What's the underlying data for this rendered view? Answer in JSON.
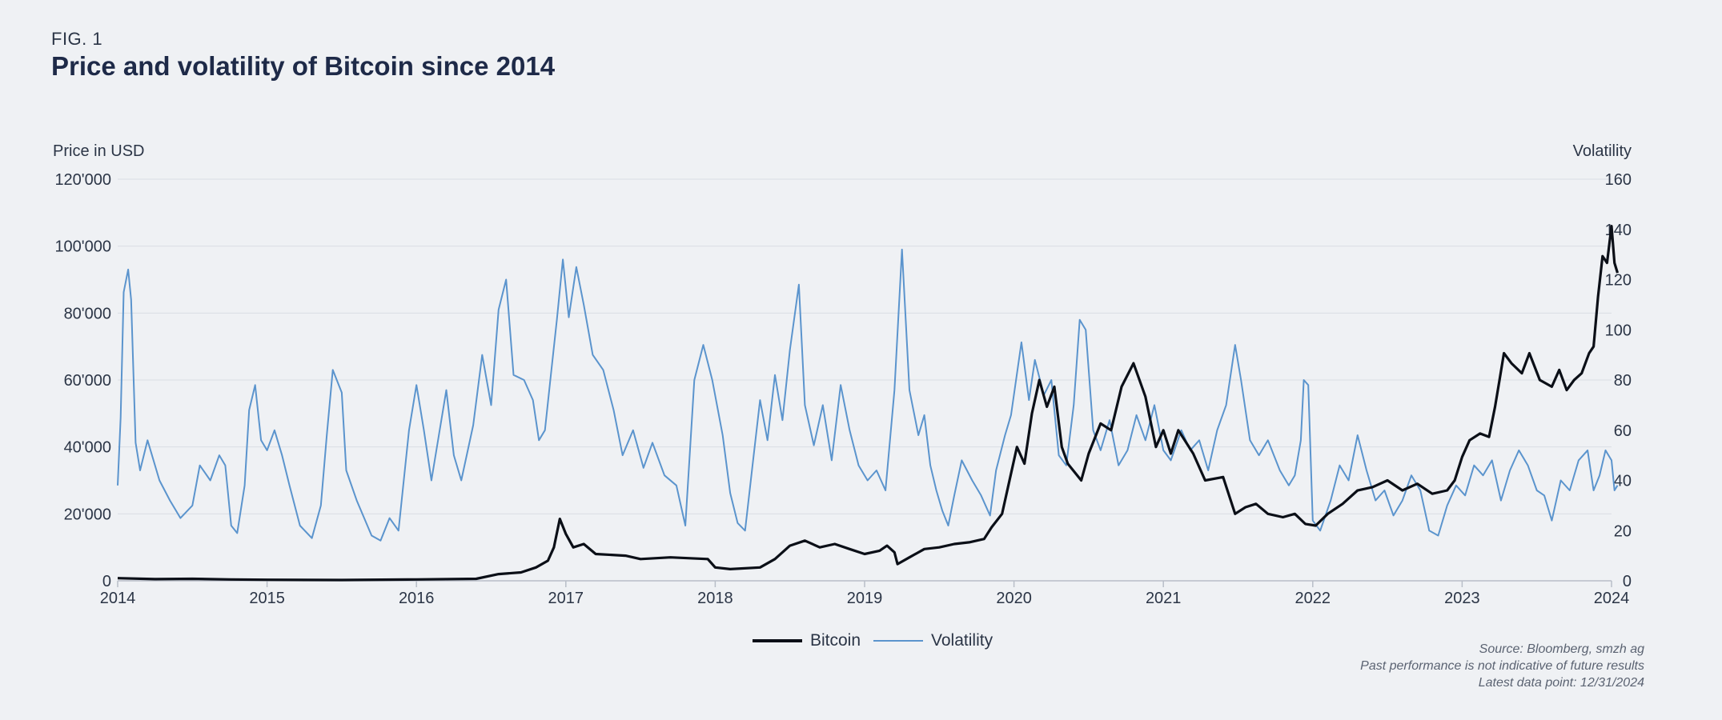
{
  "figure": {
    "label": "FIG. 1",
    "title": "Price and volatility of Bitcoin since 2014"
  },
  "chart_data": {
    "type": "line",
    "left_axis_title": "Price in USD",
    "right_axis_title": "Volatility",
    "left_ticks": [
      "0",
      "20'000",
      "40'000",
      "60'000",
      "80'000",
      "100'000",
      "120'000"
    ],
    "left_ylim": [
      0,
      120000
    ],
    "right_ticks": [
      "0",
      "20",
      "40",
      "60",
      "80",
      "100",
      "120",
      "140",
      "160"
    ],
    "right_ylim": [
      0,
      160
    ],
    "x_ticks": [
      "2014",
      "2015",
      "2016",
      "2017",
      "2018",
      "2019",
      "2020",
      "2021",
      "2022",
      "2023",
      "2024"
    ],
    "xlim": [
      2014,
      2024
    ],
    "grid": true,
    "colors": {
      "bitcoin": "#0b0f17",
      "volatility": "#5b94cd",
      "grid": "#d9dde4"
    },
    "series": [
      {
        "name": "Bitcoin",
        "axis": "left",
        "points": [
          [
            2014.0,
            800
          ],
          [
            2014.25,
            500
          ],
          [
            2014.5,
            600
          ],
          [
            2014.75,
            400
          ],
          [
            2015.0,
            300
          ],
          [
            2015.5,
            250
          ],
          [
            2016.0,
            400
          ],
          [
            2016.4,
            600
          ],
          [
            2016.55,
            2000
          ],
          [
            2016.7,
            2500
          ],
          [
            2016.8,
            4000
          ],
          [
            2016.88,
            6000
          ],
          [
            2016.92,
            10000
          ],
          [
            2016.96,
            18500
          ],
          [
            2017.0,
            14000
          ],
          [
            2017.05,
            10000
          ],
          [
            2017.12,
            11000
          ],
          [
            2017.2,
            8000
          ],
          [
            2017.4,
            7500
          ],
          [
            2017.5,
            6500
          ],
          [
            2017.7,
            7000
          ],
          [
            2017.95,
            6500
          ],
          [
            2018.0,
            4000
          ],
          [
            2018.1,
            3500
          ],
          [
            2018.3,
            4000
          ],
          [
            2018.4,
            6500
          ],
          [
            2018.5,
            10500
          ],
          [
            2018.6,
            12000
          ],
          [
            2018.7,
            10000
          ],
          [
            2018.8,
            11000
          ],
          [
            2018.9,
            9500
          ],
          [
            2019.0,
            8000
          ],
          [
            2019.1,
            9000
          ],
          [
            2019.15,
            10500
          ],
          [
            2019.2,
            8500
          ],
          [
            2019.22,
            5000
          ],
          [
            2019.3,
            7000
          ],
          [
            2019.4,
            9500
          ],
          [
            2019.5,
            10000
          ],
          [
            2019.6,
            11000
          ],
          [
            2019.7,
            11500
          ],
          [
            2019.8,
            12500
          ],
          [
            2019.85,
            16000
          ],
          [
            2019.92,
            20000
          ],
          [
            2019.97,
            30000
          ],
          [
            2020.02,
            40000
          ],
          [
            2020.07,
            35000
          ],
          [
            2020.12,
            50000
          ],
          [
            2020.17,
            60000
          ],
          [
            2020.22,
            52000
          ],
          [
            2020.27,
            58000
          ],
          [
            2020.32,
            40000
          ],
          [
            2020.36,
            35000
          ],
          [
            2020.45,
            30000
          ],
          [
            2020.5,
            38000
          ],
          [
            2020.58,
            47000
          ],
          [
            2020.65,
            45000
          ],
          [
            2020.72,
            58000
          ],
          [
            2020.8,
            65000
          ],
          [
            2020.88,
            55000
          ],
          [
            2020.95,
            40000
          ],
          [
            2021.0,
            45000
          ],
          [
            2021.05,
            38000
          ],
          [
            2021.1,
            45000
          ],
          [
            2021.2,
            38000
          ],
          [
            2021.28,
            30000
          ],
          [
            2021.4,
            31000
          ],
          [
            2021.48,
            20000
          ],
          [
            2021.55,
            22000
          ],
          [
            2021.62,
            23000
          ],
          [
            2021.7,
            20000
          ],
          [
            2021.8,
            19000
          ],
          [
            2021.88,
            20000
          ],
          [
            2021.95,
            17000
          ],
          [
            2022.02,
            16500
          ],
          [
            2022.1,
            20000
          ],
          [
            2022.2,
            23000
          ],
          [
            2022.3,
            27000
          ],
          [
            2022.4,
            28000
          ],
          [
            2022.5,
            30000
          ],
          [
            2022.6,
            27000
          ],
          [
            2022.7,
            29000
          ],
          [
            2022.8,
            26000
          ],
          [
            2022.9,
            27000
          ],
          [
            2022.95,
            30000
          ],
          [
            2023.0,
            37000
          ],
          [
            2023.05,
            42000
          ],
          [
            2023.12,
            44000
          ],
          [
            2023.18,
            43000
          ],
          [
            2023.22,
            52000
          ],
          [
            2023.25,
            60000
          ],
          [
            2023.28,
            68000
          ],
          [
            2023.33,
            65000
          ],
          [
            2023.4,
            62000
          ],
          [
            2023.45,
            68000
          ],
          [
            2023.52,
            60000
          ],
          [
            2023.6,
            58000
          ],
          [
            2023.65,
            63000
          ],
          [
            2023.7,
            57000
          ],
          [
            2023.75,
            60000
          ],
          [
            2023.8,
            62000
          ],
          [
            2023.85,
            68000
          ],
          [
            2023.88,
            70000
          ],
          [
            2023.91,
            85000
          ],
          [
            2023.94,
            97000
          ],
          [
            2023.97,
            95000
          ],
          [
            2024.0,
            106000
          ],
          [
            2024.02,
            95000
          ],
          [
            2024.04,
            92000
          ]
        ]
      },
      {
        "name": "Volatility",
        "axis": "right",
        "points": [
          [
            2014.0,
            38
          ],
          [
            2014.02,
            65
          ],
          [
            2014.04,
            115
          ],
          [
            2014.07,
            124
          ],
          [
            2014.09,
            112
          ],
          [
            2014.12,
            55
          ],
          [
            2014.15,
            44
          ],
          [
            2014.2,
            56
          ],
          [
            2014.28,
            40
          ],
          [
            2014.35,
            32
          ],
          [
            2014.42,
            25
          ],
          [
            2014.5,
            30
          ],
          [
            2014.55,
            46
          ],
          [
            2014.62,
            40
          ],
          [
            2014.68,
            50
          ],
          [
            2014.72,
            46
          ],
          [
            2014.76,
            22
          ],
          [
            2014.8,
            19
          ],
          [
            2014.85,
            38
          ],
          [
            2014.88,
            68
          ],
          [
            2014.92,
            78
          ],
          [
            2014.96,
            56
          ],
          [
            2015.0,
            52
          ],
          [
            2015.05,
            60
          ],
          [
            2015.1,
            50
          ],
          [
            2015.15,
            38
          ],
          [
            2015.22,
            22
          ],
          [
            2015.3,
            17
          ],
          [
            2015.36,
            30
          ],
          [
            2015.4,
            58
          ],
          [
            2015.44,
            84
          ],
          [
            2015.5,
            75
          ],
          [
            2015.53,
            44
          ],
          [
            2015.6,
            32
          ],
          [
            2015.7,
            18
          ],
          [
            2015.76,
            16
          ],
          [
            2015.82,
            25
          ],
          [
            2015.88,
            20
          ],
          [
            2015.95,
            60
          ],
          [
            2016.0,
            78
          ],
          [
            2016.05,
            60
          ],
          [
            2016.1,
            40
          ],
          [
            2016.15,
            58
          ],
          [
            2016.2,
            76
          ],
          [
            2016.25,
            50
          ],
          [
            2016.3,
            40
          ],
          [
            2016.38,
            62
          ],
          [
            2016.44,
            90
          ],
          [
            2016.5,
            70
          ],
          [
            2016.55,
            108
          ],
          [
            2016.6,
            120
          ],
          [
            2016.65,
            82
          ],
          [
            2016.72,
            80
          ],
          [
            2016.78,
            72
          ],
          [
            2016.82,
            56
          ],
          [
            2016.86,
            60
          ],
          [
            2016.9,
            82
          ],
          [
            2016.94,
            104
          ],
          [
            2016.98,
            128
          ],
          [
            2017.02,
            105
          ],
          [
            2017.07,
            125
          ],
          [
            2017.12,
            110
          ],
          [
            2017.18,
            90
          ],
          [
            2017.25,
            84
          ],
          [
            2017.32,
            68
          ],
          [
            2017.38,
            50
          ],
          [
            2017.45,
            60
          ],
          [
            2017.52,
            45
          ],
          [
            2017.58,
            55
          ],
          [
            2017.66,
            42
          ],
          [
            2017.74,
            38
          ],
          [
            2017.8,
            22
          ],
          [
            2017.86,
            80
          ],
          [
            2017.92,
            94
          ],
          [
            2017.98,
            80
          ],
          [
            2018.05,
            58
          ],
          [
            2018.1,
            35
          ],
          [
            2018.15,
            23
          ],
          [
            2018.2,
            20
          ],
          [
            2018.25,
            46
          ],
          [
            2018.3,
            72
          ],
          [
            2018.35,
            56
          ],
          [
            2018.4,
            82
          ],
          [
            2018.45,
            64
          ],
          [
            2018.5,
            92
          ],
          [
            2018.56,
            118
          ],
          [
            2018.6,
            70
          ],
          [
            2018.66,
            54
          ],
          [
            2018.72,
            70
          ],
          [
            2018.78,
            48
          ],
          [
            2018.84,
            78
          ],
          [
            2018.9,
            60
          ],
          [
            2018.96,
            46
          ],
          [
            2019.02,
            40
          ],
          [
            2019.08,
            44
          ],
          [
            2019.14,
            36
          ],
          [
            2019.2,
            76
          ],
          [
            2019.25,
            132
          ],
          [
            2019.3,
            76
          ],
          [
            2019.36,
            58
          ],
          [
            2019.4,
            66
          ],
          [
            2019.44,
            46
          ],
          [
            2019.48,
            36
          ],
          [
            2019.52,
            28
          ],
          [
            2019.56,
            22
          ],
          [
            2019.6,
            34
          ],
          [
            2019.65,
            48
          ],
          [
            2019.72,
            40
          ],
          [
            2019.78,
            34
          ],
          [
            2019.84,
            26
          ],
          [
            2019.88,
            44
          ],
          [
            2019.94,
            58
          ],
          [
            2019.98,
            66
          ],
          [
            2020.05,
            95
          ],
          [
            2020.1,
            72
          ],
          [
            2020.14,
            88
          ],
          [
            2020.2,
            74
          ],
          [
            2020.25,
            80
          ],
          [
            2020.3,
            50
          ],
          [
            2020.35,
            46
          ],
          [
            2020.4,
            70
          ],
          [
            2020.44,
            104
          ],
          [
            2020.48,
            100
          ],
          [
            2020.53,
            60
          ],
          [
            2020.58,
            52
          ],
          [
            2020.64,
            64
          ],
          [
            2020.7,
            46
          ],
          [
            2020.76,
            52
          ],
          [
            2020.82,
            66
          ],
          [
            2020.88,
            56
          ],
          [
            2020.94,
            70
          ],
          [
            2021.0,
            52
          ],
          [
            2021.05,
            48
          ],
          [
            2021.12,
            60
          ],
          [
            2021.18,
            52
          ],
          [
            2021.24,
            56
          ],
          [
            2021.3,
            44
          ],
          [
            2021.36,
            60
          ],
          [
            2021.42,
            70
          ],
          [
            2021.48,
            94
          ],
          [
            2021.52,
            80
          ],
          [
            2021.58,
            56
          ],
          [
            2021.64,
            50
          ],
          [
            2021.7,
            56
          ],
          [
            2021.78,
            44
          ],
          [
            2021.84,
            38
          ],
          [
            2021.88,
            42
          ],
          [
            2021.92,
            56
          ],
          [
            2021.94,
            80
          ],
          [
            2021.97,
            78
          ],
          [
            2022.0,
            24
          ],
          [
            2022.05,
            20
          ],
          [
            2022.12,
            32
          ],
          [
            2022.18,
            46
          ],
          [
            2022.24,
            40
          ],
          [
            2022.3,
            58
          ],
          [
            2022.36,
            44
          ],
          [
            2022.42,
            32
          ],
          [
            2022.48,
            36
          ],
          [
            2022.54,
            26
          ],
          [
            2022.6,
            32
          ],
          [
            2022.66,
            42
          ],
          [
            2022.72,
            36
          ],
          [
            2022.78,
            20
          ],
          [
            2022.84,
            18
          ],
          [
            2022.9,
            30
          ],
          [
            2022.96,
            38
          ],
          [
            2023.02,
            34
          ],
          [
            2023.08,
            46
          ],
          [
            2023.14,
            42
          ],
          [
            2023.2,
            48
          ],
          [
            2023.26,
            32
          ],
          [
            2023.32,
            44
          ],
          [
            2023.38,
            52
          ],
          [
            2023.44,
            46
          ],
          [
            2023.5,
            36
          ],
          [
            2023.55,
            34
          ],
          [
            2023.6,
            24
          ],
          [
            2023.66,
            40
          ],
          [
            2023.72,
            36
          ],
          [
            2023.78,
            48
          ],
          [
            2023.84,
            52
          ],
          [
            2023.88,
            36
          ],
          [
            2023.92,
            42
          ],
          [
            2023.96,
            52
          ],
          [
            2024.0,
            48
          ],
          [
            2024.02,
            36
          ],
          [
            2024.04,
            38
          ]
        ]
      }
    ]
  },
  "legend": {
    "bitcoin": "Bitcoin",
    "volatility": "Volatility"
  },
  "notes": {
    "source": "Source: Bloomberg, smzh ag",
    "disclaimer": "Past performance is not indicative of future results",
    "latest": "Latest data point: 12/31/2024"
  }
}
